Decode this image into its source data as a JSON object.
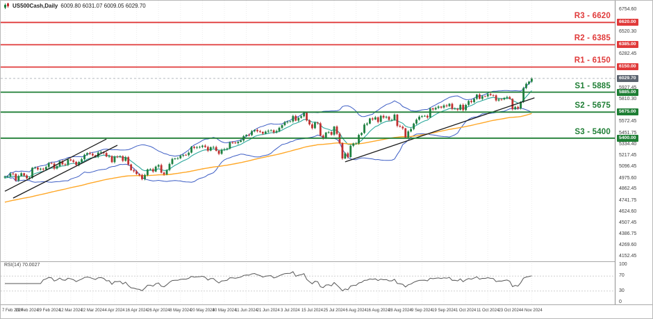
{
  "window": {
    "symbol": "US500Cash,Daily",
    "ohlc": "6009.80 6031.07 6009.05 6029.70"
  },
  "chart_data": {
    "type": "candlestick",
    "symbol": "US500Cash",
    "timeframe": "Daily",
    "ylim": [
      4123,
      6835
    ],
    "current_price": {
      "value": 6029.7,
      "axis_value": "6029.70",
      "badge_color": "#5c6470"
    },
    "y_axis": {
      "ticks": [
        "6754.60",
        "6520.30",
        "6282.45",
        "5927.45",
        "5810.30",
        "5572.45",
        "5451.75",
        "5334.40",
        "5217.45",
        "5096.45",
        "4975.60",
        "4862.45",
        "4741.75",
        "4624.60",
        "4507.45",
        "4386.75",
        "4269.60",
        "4152.45"
      ]
    },
    "x_labels": [
      "7 Feb 2024",
      "19 Feb 2024",
      "29 Feb 2024",
      "12 Mar 2024",
      "22 Mar 2024",
      "4 Apr 2024",
      "16 Apr 2024",
      "26 Apr 2024",
      "8 May 2024",
      "20 May 2024",
      "30 May 2024",
      "11 Jun 2024",
      "21 Jun 2024",
      "3 Jul 2024",
      "15 Jul 2024",
      "25 Jul 2024",
      "6 Aug 2024",
      "16 Aug 2024",
      "28 Aug 2024",
      "9 Sep 2024",
      "19 Sep 2024",
      "1 Oct 2024",
      "11 Oct 2024",
      "23 Oct 2024",
      "4 Nov 2024"
    ],
    "closes": [
      4995,
      4998,
      5027,
      5022,
      4953,
      5001,
      5030,
      5006,
      4976,
      4982,
      5087,
      5089,
      5070,
      5078,
      5070,
      5096,
      5137,
      5131,
      5079,
      5105,
      5157,
      5124,
      5118,
      5175,
      5165,
      5150,
      5117,
      5149,
      5178,
      5225,
      5242,
      5234,
      5218,
      5204,
      5248,
      5254,
      5243,
      5206,
      5211,
      5147,
      5204,
      5202,
      5210,
      5161,
      5199,
      5123,
      5062,
      5051,
      5022,
      5011,
      4967,
      5011,
      5071,
      5072,
      5048,
      5100,
      5116,
      5036,
      5018,
      5064,
      5128,
      5181,
      5187,
      5188,
      5214,
      5223,
      5221,
      5247,
      5308,
      5297,
      5303,
      5308,
      5321,
      5307,
      5268,
      5305,
      5306,
      5267,
      5235,
      5278,
      5283,
      5291,
      5354,
      5353,
      5347,
      5361,
      5375,
      5421,
      5434,
      5432,
      5473,
      5487,
      5473,
      5465,
      5448,
      5469,
      5478,
      5483,
      5460,
      5475,
      5509,
      5537,
      5567,
      5573,
      5577,
      5634,
      5585,
      5615,
      5631,
      5667,
      5588,
      5545,
      5505,
      5564,
      5556,
      5427,
      5399,
      5459,
      5464,
      5436,
      5522,
      5446,
      5347,
      5186,
      5240,
      5200,
      5319,
      5344,
      5344,
      5434,
      5455,
      5543,
      5554,
      5608,
      5597,
      5620,
      5571,
      5635,
      5617,
      5626,
      5592,
      5592,
      5648,
      5529,
      5520,
      5503,
      5408,
      5471,
      5496,
      5554,
      5595,
      5626,
      5633,
      5635,
      5618,
      5714,
      5703,
      5719,
      5733,
      5722,
      5745,
      5738,
      5762,
      5709,
      5710,
      5700,
      5751,
      5696,
      5751,
      5792,
      5780,
      5815,
      5860,
      5815,
      5842,
      5841,
      5865,
      5854,
      5851,
      5797,
      5810,
      5808,
      5824,
      5833,
      5814,
      5705,
      5729,
      5713,
      5783,
      5929,
      5973,
      5996,
      6029.7
    ],
    "candles": {
      "bull": "#1e8040",
      "bear": "#c03030",
      "width": 2.8
    },
    "levels": [
      {
        "name": "R3",
        "label": "R3 - 6620",
        "value": 6620,
        "axis_value": "6620.00",
        "kind": "resistance",
        "color": "#e03a3a"
      },
      {
        "name": "R2",
        "label": "R2 - 6385",
        "value": 6385,
        "axis_value": "6385.00",
        "kind": "resistance",
        "color": "#e03a3a"
      },
      {
        "name": "R1",
        "label": "R1 - 6150",
        "value": 6150,
        "axis_value": "6150.00",
        "kind": "resistance",
        "color": "#e03a3a"
      },
      {
        "name": "S1",
        "label": "S1 - 5885",
        "value": 5885,
        "axis_value": "5885.00",
        "kind": "support",
        "color": "#1e7e34"
      },
      {
        "name": "S2",
        "label": "S2 - 5675",
        "value": 5675,
        "axis_value": "5675.00",
        "kind": "support",
        "color": "#1e7e34"
      },
      {
        "name": "S3",
        "label": "S3 - 5400",
        "value": 5400,
        "axis_value": "5400.00",
        "kind": "support",
        "color": "#1e7e34"
      }
    ],
    "trendlines": [
      [
        0,
        4840,
        37,
        5390
      ],
      [
        3,
        4768,
        41,
        5325
      ],
      [
        124,
        5150,
        193,
        5825
      ]
    ],
    "overlays": {
      "bollinger": {
        "period": 20,
        "deviation": 2,
        "color": "#3b5cc4"
      },
      "ma_fast": {
        "type": "ema",
        "period": 9,
        "color": "#2aa79b"
      },
      "ma_slow": {
        "type": "ema",
        "period": 85,
        "color": "#ffa726"
      }
    },
    "rsi": {
      "label": "RSI(14) 70.0027",
      "period": 14,
      "current": 70.0027,
      "levels": [
        70,
        30
      ],
      "ticks": [
        "100",
        "70",
        "30",
        "0"
      ],
      "range": [
        0,
        100
      ]
    }
  }
}
